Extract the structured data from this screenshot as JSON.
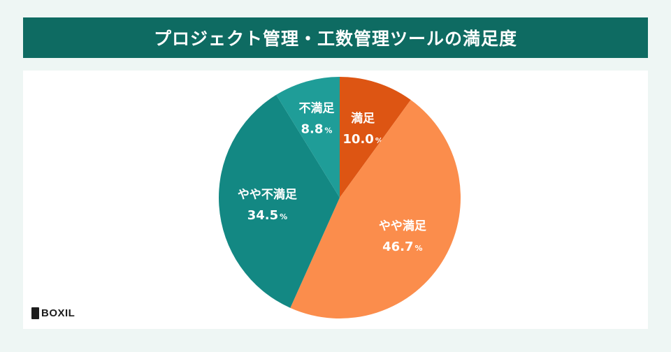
{
  "title": "プロジェクト管理・工数管理ツールの満足度",
  "logo": {
    "text": "BOXIL"
  },
  "colors": {
    "title_bg": "#0e6b62",
    "page_bg": "#eef6f4"
  },
  "chart_data": {
    "type": "pie",
    "title": "プロジェクト管理・工数管理ツールの満足度",
    "unit": "%",
    "slices": [
      {
        "label": "満足",
        "value": 10.0,
        "display": "10.0",
        "color": "#dd5513"
      },
      {
        "label": "やや満足",
        "value": 46.7,
        "display": "46.7",
        "color": "#fb8d4c"
      },
      {
        "label": "やや不満足",
        "value": 34.5,
        "display": "34.5",
        "color": "#138883"
      },
      {
        "label": "不満足",
        "value": 8.8,
        "display": "8.8",
        "color": "#1f9d98"
      }
    ]
  }
}
